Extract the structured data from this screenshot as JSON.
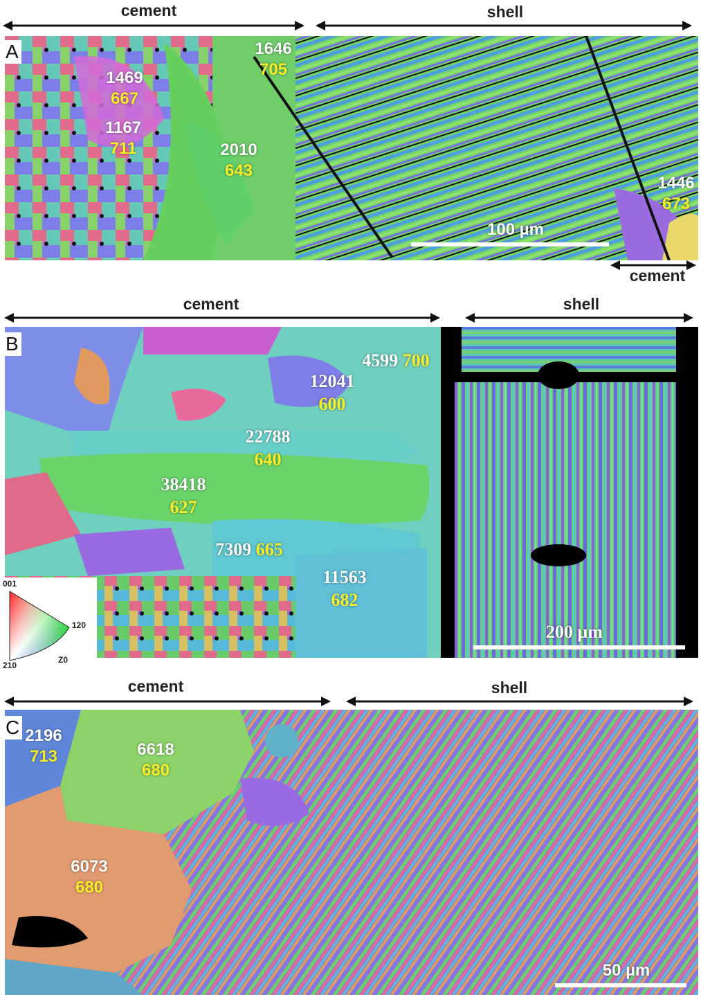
{
  "panel_a": {
    "letter": "A",
    "cement_label": "cement",
    "shell_label": "shell",
    "cement_right_label": "cement",
    "scale_label": "100 µm",
    "grains": [
      {
        "white": "1646",
        "yellow": "705"
      },
      {
        "white": "1469",
        "yellow": "667"
      },
      {
        "white": "1167",
        "yellow": "711"
      },
      {
        "white": "2010",
        "yellow": "643"
      },
      {
        "white": "1446",
        "yellow": "673"
      }
    ]
  },
  "panel_b": {
    "letter": "B",
    "cement_label": "cement",
    "shell_label": "shell",
    "scale_label": "200 µm",
    "grains": [
      {
        "white": "4599",
        "yellow": "700"
      },
      {
        "white": "12041",
        "yellow": "600"
      },
      {
        "white": "22788",
        "yellow": "640"
      },
      {
        "white": "38418",
        "yellow": "627"
      },
      {
        "white": "7309",
        "yellow": "665"
      },
      {
        "white": "11563",
        "yellow": "682"
      }
    ],
    "legend": {
      "top": "001",
      "right": "120",
      "bottom_left": "210",
      "bottom_right": "Z0"
    }
  },
  "panel_c": {
    "letter": "C",
    "cement_label": "cement",
    "shell_label": "shell",
    "scale_label": "50 µm",
    "grains": [
      {
        "white": "2196",
        "yellow": "713"
      },
      {
        "white": "6618",
        "yellow": "680"
      },
      {
        "white": "6073",
        "yellow": "680"
      }
    ]
  },
  "colors": {
    "white_text": "#ffffff",
    "yellow_text": "#f6ee2a",
    "background": "#ffffff"
  }
}
